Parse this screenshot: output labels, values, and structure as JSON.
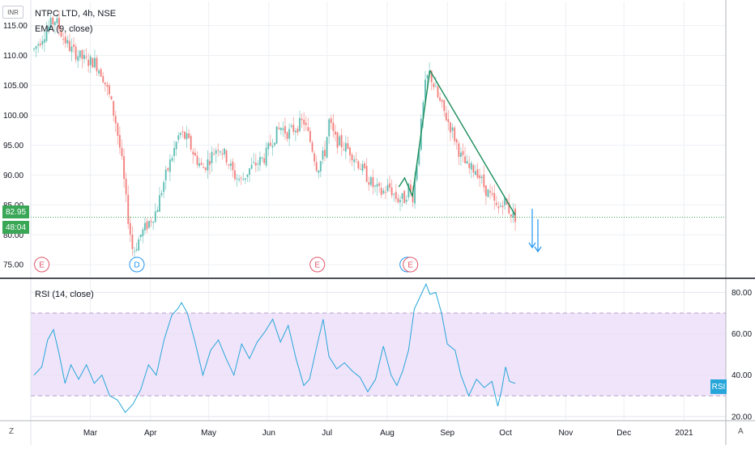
{
  "chart_data": [
    {
      "type": "candlestick",
      "title": "NTPC LTD, 4h, NSE",
      "indicator": "EMA (9, close)",
      "currency_button": "INR",
      "current_price_label": "82.95",
      "countdown_label": "48:04",
      "current_price": 82.95,
      "ylim": [
        73,
        119
      ],
      "yticks": [
        75,
        80,
        85,
        90,
        95,
        100,
        105,
        110,
        115
      ],
      "ytick_labels": [
        "75.00",
        "80.00",
        "85.00",
        "90.00",
        "95.00",
        "100.00",
        "105.00",
        "110.00",
        "115.00"
      ],
      "x_months": [
        "Mar",
        "Apr",
        "May",
        "Jun",
        "Jul",
        "Aug",
        "Sep",
        "Oct",
        "Nov",
        "Dec",
        "2021"
      ],
      "close_path": [
        {
          "d": "2020-02-01",
          "v": 111
        },
        {
          "d": "2020-02-05",
          "v": 113
        },
        {
          "d": "2020-02-09",
          "v": 115
        },
        {
          "d": "2020-02-12",
          "v": 116
        },
        {
          "d": "2020-02-16",
          "v": 113
        },
        {
          "d": "2020-02-20",
          "v": 111
        },
        {
          "d": "2020-02-24",
          "v": 110
        },
        {
          "d": "2020-02-28",
          "v": 109
        },
        {
          "d": "2020-03-03",
          "v": 109
        },
        {
          "d": "2020-03-07",
          "v": 107
        },
        {
          "d": "2020-03-11",
          "v": 103
        },
        {
          "d": "2020-03-14",
          "v": 99
        },
        {
          "d": "2020-03-17",
          "v": 93
        },
        {
          "d": "2020-03-20",
          "v": 84
        },
        {
          "d": "2020-03-23",
          "v": 77
        },
        {
          "d": "2020-03-27",
          "v": 80
        },
        {
          "d": "2020-03-31",
          "v": 82
        },
        {
          "d": "2020-04-04",
          "v": 84
        },
        {
          "d": "2020-04-08",
          "v": 89
        },
        {
          "d": "2020-04-12",
          "v": 93
        },
        {
          "d": "2020-04-16",
          "v": 97
        },
        {
          "d": "2020-04-20",
          "v": 96
        },
        {
          "d": "2020-04-24",
          "v": 93
        },
        {
          "d": "2020-04-28",
          "v": 91
        },
        {
          "d": "2020-05-02",
          "v": 93
        },
        {
          "d": "2020-05-06",
          "v": 95
        },
        {
          "d": "2020-05-10",
          "v": 93
        },
        {
          "d": "2020-05-14",
          "v": 90
        },
        {
          "d": "2020-05-18",
          "v": 89
        },
        {
          "d": "2020-05-22",
          "v": 91
        },
        {
          "d": "2020-05-26",
          "v": 92
        },
        {
          "d": "2020-05-30",
          "v": 93
        },
        {
          "d": "2020-06-03",
          "v": 96
        },
        {
          "d": "2020-06-07",
          "v": 98
        },
        {
          "d": "2020-06-11",
          "v": 97
        },
        {
          "d": "2020-06-15",
          "v": 98
        },
        {
          "d": "2020-06-19",
          "v": 99
        },
        {
          "d": "2020-06-23",
          "v": 95
        },
        {
          "d": "2020-06-26",
          "v": 91
        },
        {
          "d": "2020-06-30",
          "v": 94
        },
        {
          "d": "2020-07-02",
          "v": 99
        },
        {
          "d": "2020-07-05",
          "v": 96
        },
        {
          "d": "2020-07-09",
          "v": 95
        },
        {
          "d": "2020-07-13",
          "v": 94
        },
        {
          "d": "2020-07-17",
          "v": 92
        },
        {
          "d": "2020-07-21",
          "v": 90
        },
        {
          "d": "2020-07-25",
          "v": 88
        },
        {
          "d": "2020-07-29",
          "v": 87
        },
        {
          "d": "2020-08-02",
          "v": 88
        },
        {
          "d": "2020-08-06",
          "v": 86
        },
        {
          "d": "2020-08-10",
          "v": 86
        },
        {
          "d": "2020-08-12",
          "v": 88
        },
        {
          "d": "2020-08-14",
          "v": 86
        },
        {
          "d": "2020-08-17",
          "v": 94
        },
        {
          "d": "2020-08-21",
          "v": 106
        },
        {
          "d": "2020-08-23",
          "v": 107
        },
        {
          "d": "2020-08-27",
          "v": 103
        },
        {
          "d": "2020-08-31",
          "v": 100
        },
        {
          "d": "2020-09-04",
          "v": 97
        },
        {
          "d": "2020-09-08",
          "v": 93
        },
        {
          "d": "2020-09-12",
          "v": 91
        },
        {
          "d": "2020-09-16",
          "v": 91
        },
        {
          "d": "2020-09-20",
          "v": 88
        },
        {
          "d": "2020-09-24",
          "v": 86
        },
        {
          "d": "2020-09-27",
          "v": 84
        },
        {
          "d": "2020-09-30",
          "v": 86
        },
        {
          "d": "2020-10-03",
          "v": 84
        },
        {
          "d": "2020-10-06",
          "v": 83
        }
      ],
      "trendlines": [
        [
          {
            "d": "2020-08-07",
            "v": 88
          },
          {
            "d": "2020-08-10",
            "v": 89.5
          },
          {
            "d": "2020-08-14",
            "v": 86.5
          },
          {
            "d": "2020-08-23",
            "v": 107.5
          }
        ],
        [
          {
            "d": "2020-08-23",
            "v": 107.5
          },
          {
            "d": "2020-10-06",
            "v": 83.3
          }
        ]
      ],
      "event_markers": [
        {
          "label": "E",
          "d": "2020-02-05",
          "kind": "earnings"
        },
        {
          "label": "D",
          "d": "2020-03-25",
          "kind": "dividend"
        },
        {
          "label": "E",
          "d": "2020-06-26",
          "kind": "earnings"
        },
        {
          "label": "E",
          "d": "2020-08-13",
          "kind": "earnings"
        }
      ]
    },
    {
      "type": "line",
      "title": "RSI (14, close)",
      "series_label": "RSI",
      "ylim": [
        18,
        86
      ],
      "yticks": [
        20,
        40,
        60,
        80
      ],
      "ytick_labels": [
        "20.00",
        "40.00",
        "60.00",
        "80.00"
      ],
      "band": [
        30,
        70
      ],
      "series": [
        {
          "color": "#26a6d9",
          "points": [
            {
              "d": "2020-02-01",
              "v": 40
            },
            {
              "d": "2020-02-05",
              "v": 44
            },
            {
              "d": "2020-02-08",
              "v": 57
            },
            {
              "d": "2020-02-11",
              "v": 62
            },
            {
              "d": "2020-02-14",
              "v": 50
            },
            {
              "d": "2020-02-17",
              "v": 36
            },
            {
              "d": "2020-02-20",
              "v": 45
            },
            {
              "d": "2020-02-24",
              "v": 38
            },
            {
              "d": "2020-02-28",
              "v": 45
            },
            {
              "d": "2020-03-03",
              "v": 36
            },
            {
              "d": "2020-03-07",
              "v": 40
            },
            {
              "d": "2020-03-11",
              "v": 30
            },
            {
              "d": "2020-03-15",
              "v": 28
            },
            {
              "d": "2020-03-19",
              "v": 22
            },
            {
              "d": "2020-03-23",
              "v": 26
            },
            {
              "d": "2020-03-27",
              "v": 33
            },
            {
              "d": "2020-03-31",
              "v": 45
            },
            {
              "d": "2020-04-04",
              "v": 40
            },
            {
              "d": "2020-04-08",
              "v": 57
            },
            {
              "d": "2020-04-12",
              "v": 69
            },
            {
              "d": "2020-04-15",
              "v": 72
            },
            {
              "d": "2020-04-17",
              "v": 75
            },
            {
              "d": "2020-04-20",
              "v": 70
            },
            {
              "d": "2020-04-24",
              "v": 56
            },
            {
              "d": "2020-04-28",
              "v": 40
            },
            {
              "d": "2020-05-02",
              "v": 52
            },
            {
              "d": "2020-05-06",
              "v": 57
            },
            {
              "d": "2020-05-10",
              "v": 48
            },
            {
              "d": "2020-05-14",
              "v": 40
            },
            {
              "d": "2020-05-18",
              "v": 55
            },
            {
              "d": "2020-05-22",
              "v": 48
            },
            {
              "d": "2020-05-26",
              "v": 56
            },
            {
              "d": "2020-05-30",
              "v": 61
            },
            {
              "d": "2020-06-03",
              "v": 67
            },
            {
              "d": "2020-06-07",
              "v": 56
            },
            {
              "d": "2020-06-11",
              "v": 64
            },
            {
              "d": "2020-06-15",
              "v": 48
            },
            {
              "d": "2020-06-19",
              "v": 35
            },
            {
              "d": "2020-06-22",
              "v": 38
            },
            {
              "d": "2020-06-26",
              "v": 55
            },
            {
              "d": "2020-06-29",
              "v": 67
            },
            {
              "d": "2020-07-02",
              "v": 49
            },
            {
              "d": "2020-07-06",
              "v": 43
            },
            {
              "d": "2020-07-10",
              "v": 46
            },
            {
              "d": "2020-07-14",
              "v": 42
            },
            {
              "d": "2020-07-18",
              "v": 39
            },
            {
              "d": "2020-07-22",
              "v": 32
            },
            {
              "d": "2020-07-26",
              "v": 38
            },
            {
              "d": "2020-07-30",
              "v": 54
            },
            {
              "d": "2020-08-03",
              "v": 40
            },
            {
              "d": "2020-08-06",
              "v": 35
            },
            {
              "d": "2020-08-09",
              "v": 42
            },
            {
              "d": "2020-08-12",
              "v": 52
            },
            {
              "d": "2020-08-15",
              "v": 72
            },
            {
              "d": "2020-08-18",
              "v": 78
            },
            {
              "d": "2020-08-21",
              "v": 84
            },
            {
              "d": "2020-08-23",
              "v": 79
            },
            {
              "d": "2020-08-26",
              "v": 80
            },
            {
              "d": "2020-08-29",
              "v": 70
            },
            {
              "d": "2020-09-01",
              "v": 55
            },
            {
              "d": "2020-09-05",
              "v": 52
            },
            {
              "d": "2020-09-08",
              "v": 40
            },
            {
              "d": "2020-09-12",
              "v": 30
            },
            {
              "d": "2020-09-16",
              "v": 38
            },
            {
              "d": "2020-09-20",
              "v": 34
            },
            {
              "d": "2020-09-24",
              "v": 37
            },
            {
              "d": "2020-09-27",
              "v": 25
            },
            {
              "d": "2020-09-29",
              "v": 33
            },
            {
              "d": "2020-10-01",
              "v": 44
            },
            {
              "d": "2020-10-03",
              "v": 37
            },
            {
              "d": "2020-10-06",
              "v": 36
            }
          ]
        }
      ]
    }
  ],
  "toolbar": {
    "left_button": "Z",
    "right_button": "A"
  }
}
